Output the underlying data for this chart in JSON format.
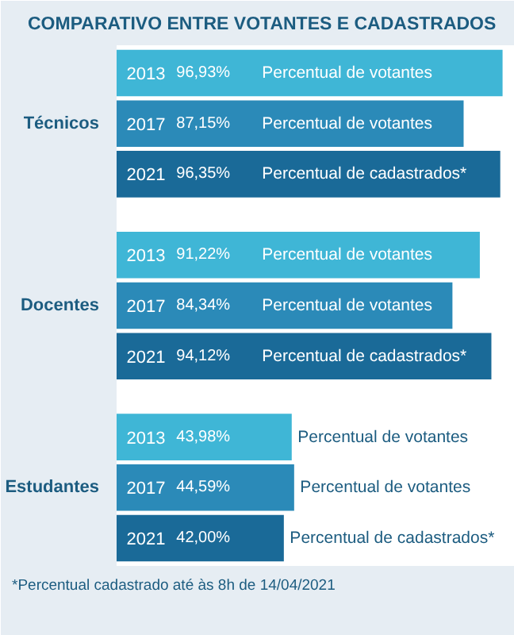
{
  "chart_data": {
    "type": "bar",
    "orientation": "horizontal",
    "title": "COMPARATIVO ENTRE VOTANTES E CADASTRADOS",
    "categories": [
      "Técnicos",
      "Docentes",
      "Estudantes"
    ],
    "series": [
      {
        "name": "2013",
        "color": "#3fb6d6",
        "values": [
          96.93,
          91.22,
          43.98
        ],
        "value_labels": [
          "96,93%",
          "91,22%",
          "43,98%"
        ]
      },
      {
        "name": "2017",
        "color": "#2b8ab8",
        "values": [
          87.15,
          84.34,
          44.59
        ],
        "value_labels": [
          "87,15%",
          "84,34%",
          "44,59%"
        ]
      },
      {
        "name": "2021",
        "color": "#1a6a98",
        "values": [
          96.35,
          94.12,
          42.0
        ],
        "value_labels": [
          "96,35%",
          "94,12%",
          "42,00%"
        ]
      }
    ],
    "xlim": [
      0,
      100
    ],
    "tick_labels": "y",
    "grid": false,
    "annotations": [
      "Percentual de votantes",
      "Percentual de votantes",
      "Percentual de cadastrados*",
      "Percentual de votantes",
      "Percentual de votantes",
      "Percentual de cadastrados*",
      "Percentual de votantes",
      "Percentual de votantes",
      "Percentual de cadastrados*",
      "*Percentual cadastrado até às 8h de 14/04/2021"
    ]
  }
}
